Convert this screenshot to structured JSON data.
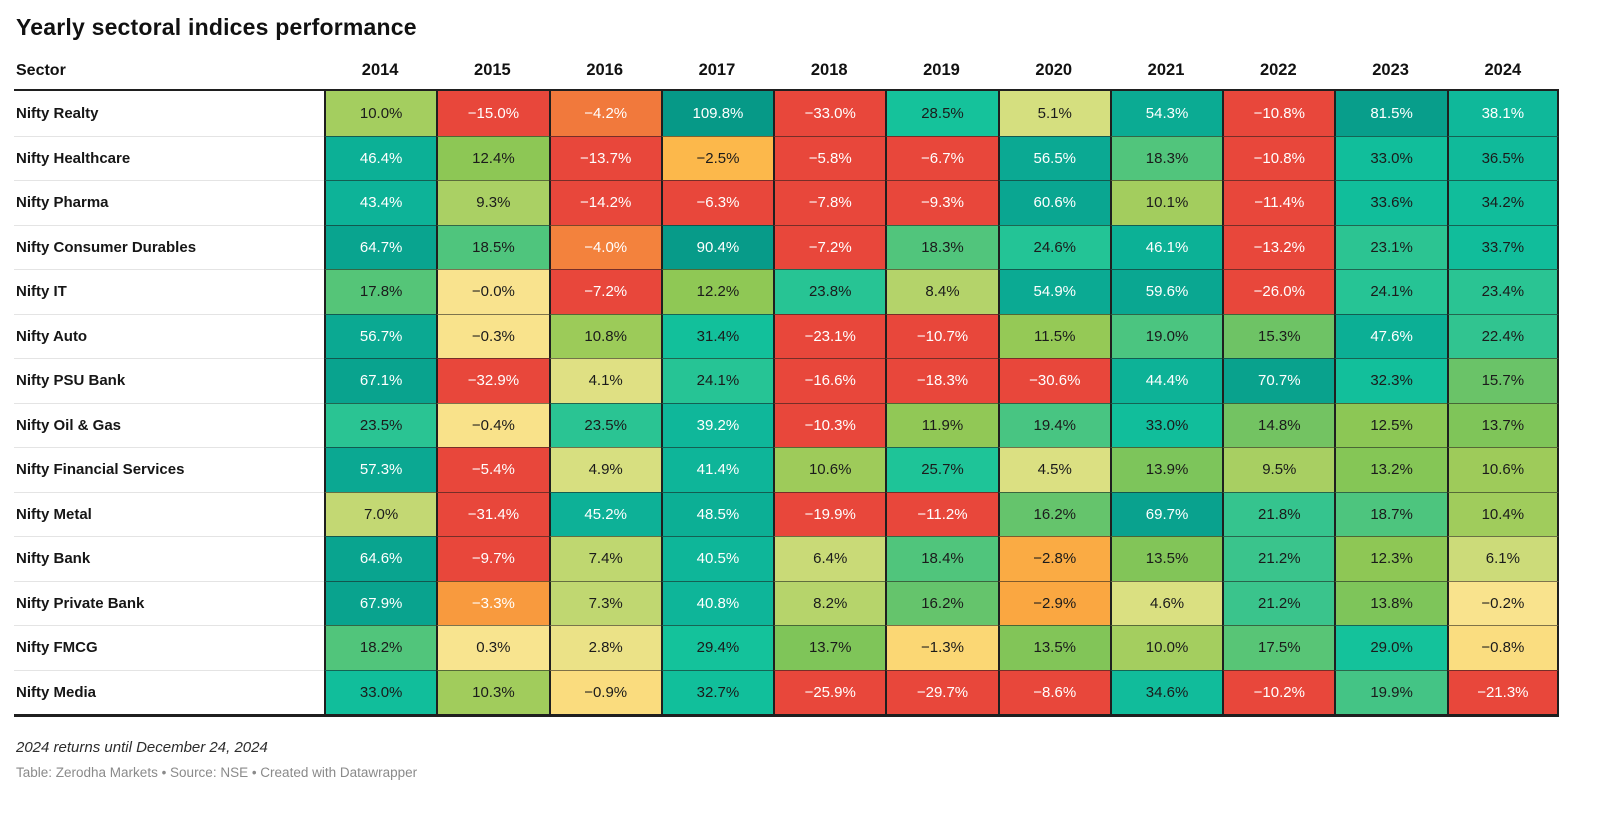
{
  "page": {
    "title": "Yearly sectoral indices performance"
  },
  "footer": {
    "footnote": "2024 returns until December 24, 2024",
    "byline": "Table: Zerodha Markets • Source: NSE • Created with Datawrapper"
  },
  "chart_data": {
    "type": "heatmap",
    "title": "Yearly sectoral indices performance",
    "row_header": "Sector",
    "columns": [
      "2014",
      "2015",
      "2016",
      "2017",
      "2018",
      "2019",
      "2020",
      "2021",
      "2022",
      "2023",
      "2024"
    ],
    "value_suffix": "%",
    "rows": [
      {
        "sector": "Nifty Realty",
        "values": [
          10.0,
          -15.0,
          -4.2,
          109.8,
          -33.0,
          28.5,
          5.1,
          54.3,
          -10.8,
          81.5,
          38.1
        ]
      },
      {
        "sector": "Nifty Healthcare",
        "values": [
          46.4,
          12.4,
          -13.7,
          -2.5,
          -5.8,
          -6.7,
          56.5,
          18.3,
          -10.8,
          33.0,
          36.5
        ]
      },
      {
        "sector": "Nifty Pharma",
        "values": [
          43.4,
          9.3,
          -14.2,
          -6.3,
          -7.8,
          -9.3,
          60.6,
          10.1,
          -11.4,
          33.6,
          34.2
        ]
      },
      {
        "sector": "Nifty Consumer Durables",
        "values": [
          64.7,
          18.5,
          -4.0,
          90.4,
          -7.2,
          18.3,
          24.6,
          46.1,
          -13.2,
          23.1,
          33.7
        ]
      },
      {
        "sector": "Nifty IT",
        "values": [
          17.8,
          -0.0,
          -7.2,
          12.2,
          23.8,
          8.4,
          54.9,
          59.6,
          -26.0,
          24.1,
          23.4
        ]
      },
      {
        "sector": "Nifty Auto",
        "values": [
          56.7,
          -0.3,
          10.8,
          31.4,
          -23.1,
          -10.7,
          11.5,
          19.0,
          15.3,
          47.6,
          22.4
        ]
      },
      {
        "sector": "Nifty PSU Bank",
        "values": [
          67.1,
          -32.9,
          4.1,
          24.1,
          -16.6,
          -18.3,
          -30.6,
          44.4,
          70.7,
          32.3,
          15.7
        ]
      },
      {
        "sector": "Nifty Oil & Gas",
        "values": [
          23.5,
          -0.4,
          23.5,
          39.2,
          -10.3,
          11.9,
          19.4,
          33.0,
          14.8,
          12.5,
          13.7
        ]
      },
      {
        "sector": "Nifty Financial Services",
        "values": [
          57.3,
          -5.4,
          4.9,
          41.4,
          10.6,
          25.7,
          4.5,
          13.9,
          9.5,
          13.2,
          10.6
        ]
      },
      {
        "sector": "Nifty Metal",
        "values": [
          7.0,
          -31.4,
          45.2,
          48.5,
          -19.9,
          -11.2,
          16.2,
          69.7,
          21.8,
          18.7,
          10.4
        ]
      },
      {
        "sector": "Nifty Bank",
        "values": [
          64.6,
          -9.7,
          7.4,
          40.5,
          6.4,
          18.4,
          -2.8,
          13.5,
          21.2,
          12.3,
          6.1
        ]
      },
      {
        "sector": "Nifty Private Bank",
        "values": [
          67.9,
          -3.3,
          7.3,
          40.8,
          8.2,
          16.2,
          -2.9,
          4.6,
          21.2,
          13.8,
          -0.2
        ]
      },
      {
        "sector": "Nifty FMCG",
        "values": [
          18.2,
          0.3,
          2.8,
          29.4,
          13.7,
          -1.3,
          13.5,
          10.0,
          17.5,
          29.0,
          -0.8
        ]
      },
      {
        "sector": "Nifty Media",
        "values": [
          33.0,
          10.3,
          -0.9,
          32.7,
          -25.9,
          -29.7,
          -8.6,
          34.6,
          -10.2,
          19.9,
          -21.3
        ]
      }
    ],
    "color_scale": {
      "stops": [
        [
          -40,
          "#e8473b"
        ],
        [
          -5,
          "#e8473b"
        ],
        [
          -4.2,
          "#f1793c"
        ],
        [
          -3.8,
          "#f58a3d"
        ],
        [
          -3.0,
          "#f9a33f"
        ],
        [
          -2.4,
          "#fcbc4d"
        ],
        [
          -1.2,
          "#fbd977"
        ],
        [
          -0.3,
          "#f9e38c"
        ],
        [
          0.5,
          "#f8e490"
        ],
        [
          3.0,
          "#eae286"
        ],
        [
          5.0,
          "#d6df80"
        ],
        [
          7.0,
          "#c3d873"
        ],
        [
          9.0,
          "#add166"
        ],
        [
          11.0,
          "#9aca57"
        ],
        [
          13.0,
          "#87c654"
        ],
        [
          15.0,
          "#71c363"
        ],
        [
          18.0,
          "#53c57a"
        ],
        [
          21.0,
          "#3bc48b"
        ],
        [
          24.0,
          "#26c495"
        ],
        [
          27.5,
          "#16c39b"
        ],
        [
          31.0,
          "#12c19b"
        ],
        [
          34.0,
          "#11bd9b"
        ],
        [
          38.0,
          "#0fb89a"
        ],
        [
          43.0,
          "#0db398"
        ],
        [
          48.0,
          "#0caf95"
        ],
        [
          55.0,
          "#0baa93"
        ],
        [
          61.0,
          "#0aa691"
        ],
        [
          68.0,
          "#09a38e"
        ],
        [
          75.0,
          "#09a08c"
        ],
        [
          90.0,
          "#079b89"
        ],
        [
          110.0,
          "#069987"
        ]
      ],
      "text_dark": "#1b1b1b",
      "text_light": "#ffffff",
      "light_text_at_or_below": -3.0,
      "light_text_at_or_above": 37.5
    },
    "layout": {
      "grid_line_color": "#1f1f1f",
      "legend": "none"
    }
  }
}
